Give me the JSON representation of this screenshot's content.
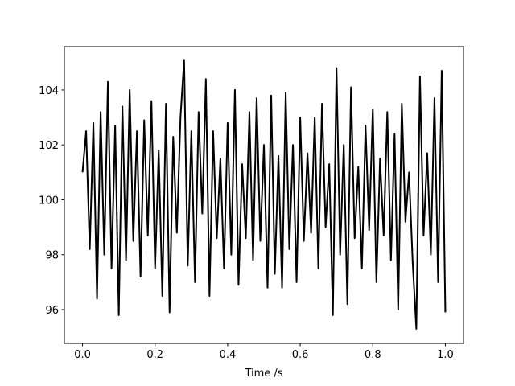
{
  "chart_data": {
    "type": "line",
    "x_label": "Time /s",
    "x": [
      0,
      0.01,
      0.02,
      0.03,
      0.04,
      0.05,
      0.06,
      0.07,
      0.08,
      0.09,
      0.1,
      0.11,
      0.12,
      0.13,
      0.14,
      0.15,
      0.16,
      0.17,
      0.18,
      0.19,
      0.2,
      0.21,
      0.22,
      0.23,
      0.24,
      0.25,
      0.26,
      0.27,
      0.28,
      0.29,
      0.3,
      0.31,
      0.32,
      0.33,
      0.34,
      0.35,
      0.36,
      0.37,
      0.38,
      0.39,
      0.4,
      0.41,
      0.42,
      0.43,
      0.44,
      0.45,
      0.46,
      0.47,
      0.48,
      0.49,
      0.5,
      0.51,
      0.52,
      0.53,
      0.54,
      0.55,
      0.56,
      0.57,
      0.58,
      0.59,
      0.6,
      0.61,
      0.62,
      0.63,
      0.64,
      0.65,
      0.66,
      0.67,
      0.68,
      0.69,
      0.7,
      0.71,
      0.72,
      0.73,
      0.74,
      0.75,
      0.76,
      0.77,
      0.78,
      0.79,
      0.8,
      0.81,
      0.82,
      0.83,
      0.84,
      0.85,
      0.86,
      0.87,
      0.88,
      0.89,
      0.9,
      0.91,
      0.92,
      0.93,
      0.94,
      0.95,
      0.96,
      0.97,
      0.98,
      0.99,
      1
    ],
    "series": [
      {
        "color": "#000000",
        "values": [
          101.0,
          102.5,
          98.2,
          102.8,
          96.4,
          103.2,
          98.0,
          104.3,
          97.5,
          102.7,
          95.8,
          103.4,
          97.8,
          104.0,
          98.5,
          102.5,
          97.2,
          102.9,
          98.7,
          103.6,
          97.5,
          101.8,
          96.5,
          103.5,
          95.9,
          102.3,
          98.8,
          103.0,
          105.1,
          97.6,
          102.5,
          97.0,
          103.2,
          99.5,
          104.4,
          96.5,
          102.5,
          98.6,
          101.5,
          97.5,
          102.8,
          98.0,
          104.0,
          96.9,
          101.3,
          98.6,
          103.2,
          97.8,
          103.7,
          98.5,
          102.0,
          96.8,
          103.8,
          97.3,
          101.6,
          96.8,
          103.9,
          98.2,
          102.0,
          97.0,
          103.0,
          98.5,
          101.7,
          98.8,
          103.0,
          97.5,
          103.5,
          99.0,
          101.3,
          95.8,
          104.8,
          98.0,
          102.0,
          96.2,
          104.1,
          98.6,
          101.2,
          97.5,
          102.7,
          98.9,
          103.3,
          97.0,
          101.5,
          98.7,
          103.2,
          97.8,
          102.4,
          96.0,
          103.5,
          99.2,
          101.0,
          97.7,
          95.3,
          104.5,
          98.7,
          101.7,
          98.0,
          103.7,
          97.0,
          104.7,
          95.9
        ]
      }
    ],
    "xlim": [
      -0.05,
      1.05
    ],
    "xticks": [
      {
        "value": 0,
        "label": "0.0"
      },
      0.2,
      0.4,
      0.6,
      0.8,
      {
        "value": 1,
        "label": "1.0"
      }
    ],
    "ylim": [
      94.77,
      105.58
    ],
    "yticks": [
      96,
      98,
      100,
      102,
      104
    ]
  }
}
